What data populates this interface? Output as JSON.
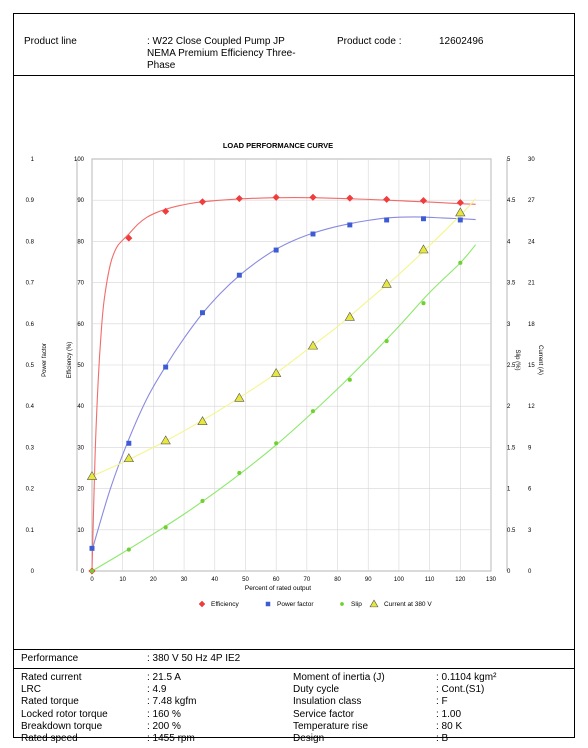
{
  "header": {
    "product_line_label": "Product line",
    "product_line_value_1": ": W22 Close Coupled Pump JP",
    "product_line_value_2": "NEMA Premium Efficiency Three-",
    "product_line_value_3": "Phase",
    "product_code_label": "Product code :",
    "product_code_value": "12602496"
  },
  "chart_data": {
    "type": "line",
    "title": "LOAD PERFORMANCE CURVE",
    "xlabel": "Percent of rated output",
    "xlim": [
      0,
      130
    ],
    "xticks": [
      0,
      10,
      20,
      30,
      40,
      50,
      60,
      70,
      80,
      90,
      100,
      110,
      120,
      130
    ],
    "grid": true,
    "legend_position": "bottom",
    "axes": {
      "left_outer": {
        "label": "Power factor",
        "range": [
          0,
          1
        ],
        "ticks": [
          "0",
          "0.1",
          "0.2",
          "0.3",
          "0.4",
          "0.5",
          "0.6",
          "0.7",
          "0.8",
          "0.9",
          "1"
        ]
      },
      "left_inner": {
        "label": "Efficiency (%)",
        "range": [
          0,
          100
        ],
        "ticks": [
          "0",
          "10",
          "20",
          "30",
          "40",
          "50",
          "60",
          "70",
          "80",
          "90",
          "100"
        ]
      },
      "right_inner": {
        "label": "Slip (%)",
        "range": [
          0,
          5
        ],
        "ticks": [
          "0",
          "0.5",
          "1",
          "1.5",
          "2",
          "2.5",
          "3",
          "3.5",
          "4",
          "4.5",
          "5"
        ]
      },
      "right_outer": {
        "label": "Current (A)",
        "range": [
          0,
          30
        ],
        "ticks": [
          "0",
          "3",
          "6",
          "9",
          "12",
          "15",
          "18",
          "21",
          "24",
          "27",
          "30"
        ]
      }
    },
    "series": [
      {
        "name": "Efficiency",
        "axis": "left_inner",
        "color": "#f03c3c",
        "line_color": "#f26b6b",
        "marker": "diamond",
        "x": [
          0,
          12,
          24,
          36,
          48,
          60,
          72,
          84,
          96,
          108,
          120
        ],
        "y": [
          0,
          80.8,
          87.3,
          89.6,
          90.4,
          90.7,
          90.7,
          90.5,
          90.2,
          89.9,
          89.4
        ],
        "curve_x": [
          0,
          1,
          2,
          3,
          4,
          6,
          8,
          10,
          12,
          15,
          18,
          21,
          24,
          28,
          32,
          36,
          42,
          48,
          54,
          60,
          66,
          72,
          78,
          84,
          90,
          96,
          102,
          108,
          114,
          120,
          125
        ],
        "curve_y": [
          0,
          28,
          46,
          58,
          66,
          74.5,
          78.5,
          80.3,
          81.8,
          84.2,
          85.9,
          87,
          87.8,
          88.6,
          89.2,
          89.6,
          90,
          90.3,
          90.5,
          90.6,
          90.65,
          90.6,
          90.5,
          90.35,
          90.2,
          90,
          89.8,
          89.6,
          89.4,
          89.15,
          89
        ]
      },
      {
        "name": "Power factor",
        "axis": "left_outer",
        "color": "#3d5bd4",
        "line_color": "#8a8ae0",
        "marker": "square",
        "x": [
          0,
          12,
          24,
          36,
          48,
          60,
          72,
          84,
          96,
          108,
          120
        ],
        "y": [
          0.055,
          0.31,
          0.495,
          0.627,
          0.718,
          0.779,
          0.818,
          0.84,
          0.852,
          0.855,
          0.852
        ],
        "curve_x": [
          0,
          6,
          12,
          18,
          24,
          30,
          36,
          42,
          48,
          54,
          60,
          66,
          72,
          78,
          84,
          90,
          96,
          102,
          108,
          114,
          120,
          125
        ],
        "curve_y": [
          0.05,
          0.2,
          0.32,
          0.42,
          0.497,
          0.565,
          0.625,
          0.675,
          0.717,
          0.752,
          0.781,
          0.803,
          0.82,
          0.833,
          0.843,
          0.851,
          0.857,
          0.859,
          0.859,
          0.857,
          0.855,
          0.853
        ]
      },
      {
        "name": "Slip",
        "axis": "right_inner",
        "color": "#6fd130",
        "line_color": "#8de86b",
        "marker": "circle",
        "x": [
          0,
          12,
          24,
          36,
          48,
          60,
          72,
          84,
          96,
          108,
          120
        ],
        "y": [
          0,
          0.26,
          0.53,
          0.85,
          1.19,
          1.55,
          1.94,
          2.32,
          2.79,
          3.25,
          3.74
        ],
        "curve_x": [
          0,
          10,
          20,
          30,
          40,
          50,
          60,
          70,
          80,
          90,
          100,
          110,
          120,
          125
        ],
        "curve_y": [
          0,
          0.22,
          0.45,
          0.69,
          0.95,
          1.23,
          1.53,
          1.86,
          2.21,
          2.58,
          2.97,
          3.38,
          3.74,
          3.96
        ]
      },
      {
        "name": "Current at 380 V",
        "axis": "right_outer",
        "color": "#e8e83c",
        "line_color": "#f5f58c",
        "marker": "triangle",
        "x": [
          0,
          12,
          24,
          36,
          48,
          60,
          72,
          84,
          96,
          108,
          120
        ],
        "y": [
          6.9,
          8.2,
          9.5,
          10.9,
          12.6,
          14.4,
          16.4,
          18.5,
          20.9,
          23.4,
          26.1
        ],
        "curve_x": [
          0,
          10,
          20,
          30,
          40,
          50,
          60,
          70,
          80,
          90,
          100,
          110,
          120,
          125
        ],
        "curve_y": [
          6.9,
          7.9,
          9,
          10.2,
          11.5,
          12.9,
          14.4,
          16.1,
          17.8,
          19.7,
          21.6,
          23.7,
          25.9,
          27.1
        ]
      }
    ]
  },
  "performance": {
    "label": "Performance",
    "value": ": 380 V 50 Hz 4P IE2"
  },
  "specs_left": [
    {
      "label": "Rated current",
      "value": ": 21.5 A"
    },
    {
      "label": "LRC",
      "value": ": 4.9"
    },
    {
      "label": "Rated torque",
      "value": ": 7.48 kgfm"
    },
    {
      "label": "Locked rotor torque",
      "value": ": 160 %"
    },
    {
      "label": "Breakdown torque",
      "value": ": 200 %"
    },
    {
      "label": "Rated speed",
      "value": ": 1455 rpm"
    }
  ],
  "specs_right": [
    {
      "label": "Moment of inertia (J)",
      "value": ": 0.1104 kgm²"
    },
    {
      "label": "Duty cycle",
      "value": ": Cont.(S1)"
    },
    {
      "label": "Insulation class",
      "value": ": F"
    },
    {
      "label": "Service factor",
      "value": ": 1.00"
    },
    {
      "label": "Temperature rise",
      "value": ": 80 K"
    },
    {
      "label": "Design",
      "value": ": B"
    }
  ]
}
